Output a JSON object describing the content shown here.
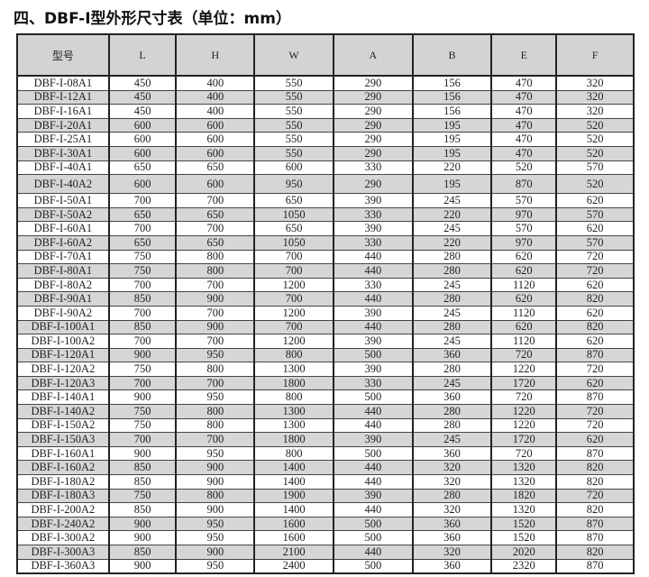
{
  "title": "四、DBF-I型外形尺寸表（单位：mm）",
  "columns": [
    "型号",
    "L",
    "H",
    "W",
    "A",
    "B",
    "E",
    "F"
  ],
  "rows": [
    [
      "DBF-I-08A1",
      "450",
      "400",
      "550",
      "290",
      "156",
      "470",
      "320"
    ],
    [
      "DBF-I-12A1",
      "450",
      "400",
      "550",
      "290",
      "156",
      "470",
      "320"
    ],
    [
      "DBF-I-16A1",
      "450",
      "400",
      "550",
      "290",
      "156",
      "470",
      "320"
    ],
    [
      "DBF-I-20A1",
      "600",
      "600",
      "550",
      "290",
      "195",
      "470",
      "520"
    ],
    [
      "DBF-I-25A1",
      "600",
      "600",
      "550",
      "290",
      "195",
      "470",
      "520"
    ],
    [
      "DBF-I-30A1",
      "600",
      "600",
      "550",
      "290",
      "195",
      "470",
      "520"
    ],
    [
      "DBF-I-40A1",
      "650",
      "650",
      "600",
      "330",
      "220",
      "520",
      "570"
    ],
    [
      "DBF-I-40A2",
      "600",
      "600",
      "950",
      "290",
      "195",
      "870",
      "520"
    ],
    [
      "DBF-I-50A1",
      "700",
      "700",
      "650",
      "390",
      "245",
      "570",
      "620"
    ],
    [
      "DBF-I-50A2",
      "650",
      "650",
      "1050",
      "330",
      "220",
      "970",
      "570"
    ],
    [
      "DBF-I-60A1",
      "700",
      "700",
      "650",
      "390",
      "245",
      "570",
      "620"
    ],
    [
      "DBF-I-60A2",
      "650",
      "650",
      "1050",
      "330",
      "220",
      "970",
      "570"
    ],
    [
      "DBF-I-70A1",
      "750",
      "800",
      "700",
      "440",
      "280",
      "620",
      "720"
    ],
    [
      "DBF-I-80A1",
      "750",
      "800",
      "700",
      "440",
      "280",
      "620",
      "720"
    ],
    [
      "DBF-I-80A2",
      "700",
      "700",
      "1200",
      "330",
      "245",
      "1120",
      "620"
    ],
    [
      "DBF-I-90A1",
      "850",
      "900",
      "700",
      "440",
      "280",
      "620",
      "820"
    ],
    [
      "DBF-I-90A2",
      "700",
      "700",
      "1200",
      "390",
      "245",
      "1120",
      "620"
    ],
    [
      "DBF-I-100A1",
      "850",
      "900",
      "700",
      "440",
      "280",
      "620",
      "820"
    ],
    [
      "DBF-I-100A2",
      "700",
      "700",
      "1200",
      "390",
      "245",
      "1120",
      "620"
    ],
    [
      "DBF-I-120A1",
      "900",
      "950",
      "800",
      "500",
      "360",
      "720",
      "870"
    ],
    [
      "DBF-I-120A2",
      "750",
      "800",
      "1300",
      "390",
      "280",
      "1220",
      "720"
    ],
    [
      "DBF-I-120A3",
      "700",
      "700",
      "1800",
      "330",
      "245",
      "1720",
      "620"
    ],
    [
      "DBF-I-140A1",
      "900",
      "950",
      "800",
      "500",
      "360",
      "720",
      "870"
    ],
    [
      "DBF-I-140A2",
      "750",
      "800",
      "1300",
      "440",
      "280",
      "1220",
      "720"
    ],
    [
      "DBF-I-150A2",
      "750",
      "800",
      "1300",
      "440",
      "280",
      "1220",
      "720"
    ],
    [
      "DBF-I-150A3",
      "700",
      "700",
      "1800",
      "390",
      "245",
      "1720",
      "620"
    ],
    [
      "DBF-I-160A1",
      "900",
      "950",
      "800",
      "500",
      "360",
      "720",
      "870"
    ],
    [
      "DBF-I-160A2",
      "850",
      "900",
      "1400",
      "440",
      "320",
      "1320",
      "820"
    ],
    [
      "DBF-I-180A2",
      "850",
      "900",
      "1400",
      "440",
      "320",
      "1320",
      "820"
    ],
    [
      "DBF-I-180A3",
      "750",
      "800",
      "1900",
      "390",
      "280",
      "1820",
      "720"
    ],
    [
      "DBF-I-200A2",
      "850",
      "900",
      "1400",
      "440",
      "320",
      "1320",
      "820"
    ],
    [
      "DBF-I-240A2",
      "900",
      "950",
      "1600",
      "500",
      "360",
      "1520",
      "870"
    ],
    [
      "DBF-I-300A2",
      "900",
      "950",
      "1600",
      "500",
      "360",
      "1520",
      "870"
    ],
    [
      "DBF-I-300A3",
      "850",
      "900",
      "2100",
      "440",
      "320",
      "2020",
      "820"
    ],
    [
      "DBF-I-360A3",
      "900",
      "950",
      "2400",
      "500",
      "360",
      "2320",
      "870"
    ]
  ]
}
